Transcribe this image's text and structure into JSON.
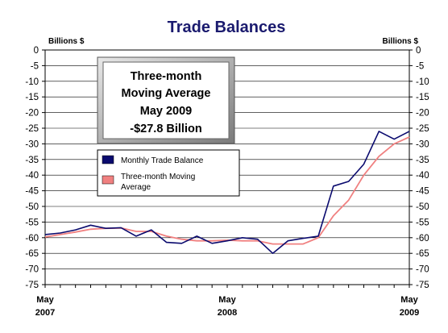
{
  "chart_data": {
    "type": "line",
    "title": "Trade Balances",
    "ylabel_left": "Billions $",
    "ylabel_right": "Billions $",
    "ylim": [
      -75,
      0
    ],
    "ytick_step": 5,
    "grid": true,
    "x_tick_labels": [
      {
        "line1": "May",
        "line2": "2007",
        "index": 0
      },
      {
        "line1": "May",
        "line2": "2008",
        "index": 12
      },
      {
        "line1": "May",
        "line2": "2009",
        "index": 24
      }
    ],
    "x": [
      "May 2007",
      "Jun 2007",
      "Jul 2007",
      "Aug 2007",
      "Sep 2007",
      "Oct 2007",
      "Nov 2007",
      "Dec 2007",
      "Jan 2008",
      "Feb 2008",
      "Mar 2008",
      "Apr 2008",
      "May 2008",
      "Jun 2008",
      "Jul 2008",
      "Aug 2008",
      "Sep 2008",
      "Oct 2008",
      "Nov 2008",
      "Dec 2008",
      "Jan 2009",
      "Feb 2009",
      "Mar 2009",
      "Apr 2009",
      "May 2009"
    ],
    "series": [
      {
        "name": "Monthly Trade Balance",
        "color": "#0a0a6e",
        "values": [
          -59.0,
          -58.5,
          -57.5,
          -56.0,
          -57.0,
          -56.8,
          -59.5,
          -57.5,
          -61.5,
          -61.8,
          -59.5,
          -61.8,
          -61.0,
          -60.0,
          -60.5,
          -65.0,
          -61.0,
          -60.2,
          -59.5,
          -43.5,
          -42.0,
          -36.5,
          -26.0,
          -28.5,
          -26.0
        ]
      },
      {
        "name": "Three-month Moving Average",
        "color": "#f08080",
        "values": [
          -59.8,
          -59.0,
          -58.2,
          -57.3,
          -57.0,
          -56.9,
          -58.0,
          -58.0,
          -59.5,
          -60.5,
          -61.0,
          -61.0,
          -60.8,
          -61.0,
          -61.0,
          -62.0,
          -62.0,
          -62.0,
          -60.0,
          -53.0,
          -48.0,
          -40.0,
          -34.0,
          -30.0,
          -27.8
        ]
      }
    ],
    "legend": {
      "placement": "center-left",
      "entries": [
        "Monthly Trade Balance",
        "Three-month Moving Average"
      ]
    },
    "annotation": {
      "lines": [
        "Three-month",
        "Moving Average",
        "May 2009",
        "-$27.8 Billion"
      ]
    }
  }
}
